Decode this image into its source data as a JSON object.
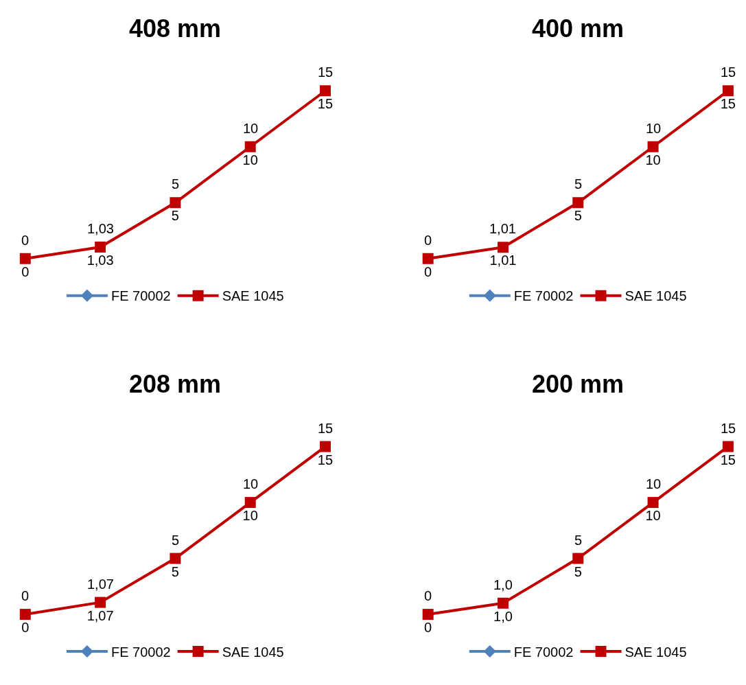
{
  "chart_data": [
    {
      "type": "line",
      "title": "408 mm",
      "categories": [
        null,
        null,
        null,
        null,
        null
      ],
      "legend": "bottom",
      "tick_labels": false,
      "annotations": [
        {
          "text": "0",
          "y": 0
        },
        {
          "text": "1,03",
          "y": 1.03
        },
        {
          "text": "5",
          "y": 5
        },
        {
          "text": "10",
          "y": 10
        },
        {
          "text": "15",
          "y": 15
        }
      ],
      "series": [
        {
          "name": "FE 70002",
          "color": "#4f81bd",
          "marker": "diamond",
          "values": [
            null,
            null,
            null,
            null,
            null
          ]
        },
        {
          "name": "SAE 1045",
          "color": "#c00000",
          "marker": "square",
          "values": [
            0,
            1.03,
            5,
            10,
            15
          ],
          "value_labels": [
            "0",
            "1,03",
            "5",
            "10",
            "15"
          ]
        }
      ]
    },
    {
      "type": "line",
      "title": "400 mm",
      "categories": [
        null,
        null,
        null,
        null,
        null
      ],
      "legend": "bottom",
      "tick_labels": false,
      "annotations": [
        {
          "text": "0",
          "y": 0
        },
        {
          "text": "1,01",
          "y": 1.01
        },
        {
          "text": "5",
          "y": 5
        },
        {
          "text": "10",
          "y": 10
        },
        {
          "text": "15",
          "y": 15
        }
      ],
      "series": [
        {
          "name": "FE 70002",
          "color": "#4f81bd",
          "marker": "diamond",
          "values": [
            null,
            null,
            null,
            null,
            null
          ]
        },
        {
          "name": "SAE 1045",
          "color": "#c00000",
          "marker": "square",
          "values": [
            0,
            1.01,
            5,
            10,
            15
          ],
          "value_labels": [
            "0",
            "1,01",
            "5",
            "10",
            "15"
          ]
        }
      ]
    },
    {
      "type": "line",
      "title": "208 mm",
      "categories": [
        null,
        null,
        null,
        null,
        null
      ],
      "legend": "bottom",
      "tick_labels": false,
      "annotations": [
        {
          "text": "0",
          "y": 0
        },
        {
          "text": "1,07",
          "y": 1.07
        },
        {
          "text": "5",
          "y": 5
        },
        {
          "text": "10",
          "y": 10
        },
        {
          "text": "15",
          "y": 15
        }
      ],
      "series": [
        {
          "name": "FE 70002",
          "color": "#4f81bd",
          "marker": "diamond",
          "values": [
            null,
            null,
            null,
            null,
            null
          ]
        },
        {
          "name": "SAE 1045",
          "color": "#c00000",
          "marker": "square",
          "values": [
            0,
            1.07,
            5,
            10,
            15
          ],
          "value_labels": [
            "0",
            "1,07",
            "5",
            "10",
            "15"
          ]
        }
      ]
    },
    {
      "type": "line",
      "title": "200 mm",
      "categories": [
        null,
        null,
        null,
        null,
        null
      ],
      "legend": "bottom",
      "tick_labels": false,
      "annotations": [
        {
          "text": "0",
          "y": 0
        },
        {
          "text": "1,0",
          "y": 1.0
        },
        {
          "text": "5",
          "y": 5
        },
        {
          "text": "10",
          "y": 10
        },
        {
          "text": "15",
          "y": 15
        }
      ],
      "series": [
        {
          "name": "FE 70002",
          "color": "#4f81bd",
          "marker": "diamond",
          "values": [
            null,
            null,
            null,
            null,
            null
          ]
        },
        {
          "name": "SAE 1045",
          "color": "#c00000",
          "marker": "square",
          "values": [
            0,
            1.0,
            5,
            10,
            15
          ],
          "value_labels": [
            "0",
            "1,0",
            "5",
            "10",
            "15"
          ]
        }
      ]
    }
  ]
}
